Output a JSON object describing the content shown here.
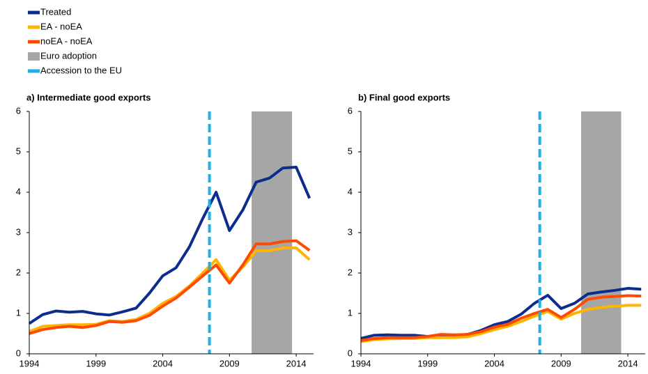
{
  "legend": {
    "items": [
      "Treated",
      "EA - noEA",
      "noEA - noEA",
      "Euro adoption",
      "Accession to the EU"
    ]
  },
  "chart_data": [
    {
      "type": "line",
      "title": "a) Intermediate good exports",
      "x": [
        1994,
        1995,
        1996,
        1997,
        1998,
        1999,
        2000,
        2001,
        2002,
        2003,
        2004,
        2005,
        2006,
        2007,
        2008,
        2009,
        2010,
        2011,
        2012,
        2013,
        2014,
        2015
      ],
      "series": [
        {
          "color": "#0d2d8c",
          "values": [
            0.75,
            0.97,
            1.06,
            1.03,
            1.05,
            0.99,
            0.96,
            1.04,
            1.13,
            1.5,
            1.93,
            2.13,
            2.65,
            3.35,
            4.0,
            3.05,
            3.56,
            4.25,
            4.35,
            4.6,
            4.62,
            3.85
          ]
        },
        {
          "color": "#ffb400",
          "values": [
            0.55,
            0.68,
            0.7,
            0.72,
            0.72,
            0.73,
            0.82,
            0.8,
            0.85,
            1.0,
            1.25,
            1.42,
            1.68,
            2.0,
            2.33,
            1.82,
            2.15,
            2.55,
            2.55,
            2.62,
            2.62,
            2.33
          ]
        },
        {
          "color": "#ff4b00",
          "values": [
            0.5,
            0.6,
            0.65,
            0.68,
            0.65,
            0.7,
            0.8,
            0.78,
            0.82,
            0.95,
            1.18,
            1.38,
            1.65,
            1.93,
            2.2,
            1.75,
            2.2,
            2.72,
            2.72,
            2.78,
            2.8,
            2.56
          ]
        }
      ],
      "bands": [
        {
          "start": 2010.66,
          "end": 2013.69,
          "color": "#a6a6a6"
        }
      ],
      "vlines": [
        {
          "value": 2007.5,
          "color": "#1fb0e6"
        }
      ],
      "xlim": [
        1994,
        2015.3
      ],
      "xticks": [
        1994,
        1999,
        2004,
        2009,
        2014
      ],
      "ylim": [
        0,
        6
      ],
      "yticks": [
        0,
        1,
        2,
        3,
        4,
        5,
        6
      ]
    },
    {
      "type": "line",
      "title": "b) Final good exports",
      "x": [
        1994,
        1995,
        1996,
        1997,
        1998,
        1999,
        2000,
        2001,
        2002,
        2003,
        2004,
        2005,
        2006,
        2007,
        2008,
        2009,
        2010,
        2011,
        2012,
        2013,
        2014,
        2015
      ],
      "series": [
        {
          "color": "#0d2d8c",
          "values": [
            0.38,
            0.46,
            0.47,
            0.46,
            0.46,
            0.43,
            0.44,
            0.45,
            0.48,
            0.58,
            0.72,
            0.8,
            0.98,
            1.25,
            1.45,
            1.12,
            1.25,
            1.48,
            1.53,
            1.57,
            1.62,
            1.6
          ]
        },
        {
          "color": "#ffb400",
          "values": [
            0.3,
            0.35,
            0.37,
            0.38,
            0.38,
            0.4,
            0.4,
            0.4,
            0.42,
            0.5,
            0.6,
            0.68,
            0.8,
            0.93,
            1.05,
            0.86,
            1.0,
            1.1,
            1.15,
            1.18,
            1.2,
            1.2
          ]
        },
        {
          "color": "#ff4b00",
          "values": [
            0.33,
            0.38,
            0.4,
            0.4,
            0.4,
            0.43,
            0.48,
            0.47,
            0.48,
            0.55,
            0.66,
            0.73,
            0.88,
            1.0,
            1.1,
            0.9,
            1.1,
            1.35,
            1.4,
            1.42,
            1.44,
            1.43
          ]
        }
      ],
      "bands": [
        {
          "start": 2010.5,
          "end": 2013.5,
          "color": "#a6a6a6"
        }
      ],
      "vlines": [
        {
          "value": 2007.4,
          "color": "#1fb0e6"
        }
      ],
      "xlim": [
        1994,
        2015.3
      ],
      "xticks": [
        1994,
        1999,
        2004,
        2009,
        2014
      ],
      "ylim": [
        0,
        6
      ],
      "yticks": [
        0,
        1,
        2,
        3,
        4,
        5,
        6
      ]
    }
  ]
}
